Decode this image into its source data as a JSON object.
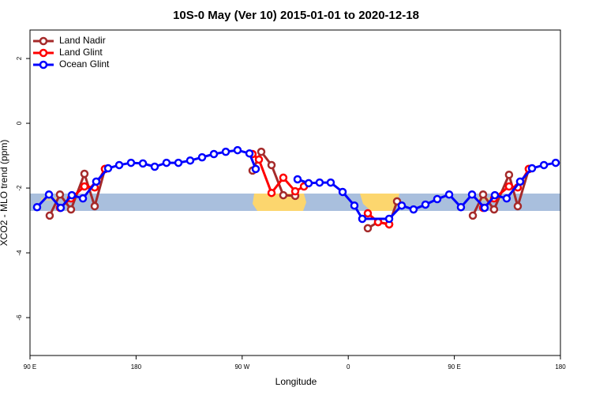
{
  "chart_data": {
    "type": "line",
    "title": "10S-0 May (Ver 10)   2015-01-01 to 2020-12-18",
    "xlabel": "Longitude",
    "ylabel": "XCO2 - MLO trend (ppm)",
    "xlim": [
      90,
      540
    ],
    "ylim": [
      -7.17,
      2.88
    ],
    "xticks": [
      {
        "value": 90,
        "label": "90 E"
      },
      180,
      {
        "value": 270,
        "label": "90 W"
      },
      {
        "value": 360,
        "label": "0"
      },
      {
        "value": 450,
        "label": "90 E"
      },
      {
        "value": 540,
        "label": "180"
      }
    ],
    "yticks": [
      2,
      0,
      -2,
      -4,
      -6
    ],
    "legend": "top-left",
    "series": [
      {
        "name": "Land Nadir",
        "color": "#a52a2a",
        "x": [
          106.7,
          115.4,
          124.8,
          136.2,
          144.9,
          153.6,
          200,
          278.8,
          286.2,
          294.9,
          304.9,
          315.0,
          350,
          376.6,
          385.3,
          394.7,
          401.4,
          440,
          465.7,
          474.4,
          483.7,
          496.4,
          503.8,
          513.2
        ],
        "values": [
          -2.85,
          -2.2,
          -2.66,
          -1.56,
          -2.56,
          -1.41,
          null,
          -1.46,
          -0.88,
          -1.29,
          -2.22,
          -2.24,
          null,
          -3.24,
          -3.05,
          -3.12,
          -2.41,
          null,
          -2.85,
          -2.2,
          -2.66,
          -1.59,
          -2.56,
          -1.41
        ]
      },
      {
        "name": "Land Glint",
        "color": "#ff0000",
        "x": [
          115.4,
          124.8,
          136.2,
          144.9,
          153.6,
          200,
          278.8,
          284.2,
          294.9,
          304.9,
          315.0,
          322.4,
          350,
          376.6,
          385.3,
          394.7,
          440,
          474.4,
          483.7,
          496.4,
          503.8,
          513.2
        ],
        "values": [
          -2.61,
          -2.32,
          -1.95,
          -1.98,
          -1.41,
          null,
          -0.95,
          -1.12,
          -2.15,
          -1.68,
          -2.1,
          -1.95,
          null,
          -2.78,
          -3.05,
          -3.12,
          null,
          -2.61,
          -2.32,
          -1.95,
          -1.98,
          -1.41
        ]
      },
      {
        "name": "Ocean Glint",
        "color": "#0000ff",
        "x": [
          96.0,
          106.1,
          116.1,
          125.5,
          134.9,
          146.2,
          156.3,
          165.7,
          175.7,
          185.8,
          195.8,
          205.8,
          215.9,
          225.9,
          236.0,
          246.0,
          256.1,
          266.1,
          276.2,
          281.5,
          300,
          317.0,
          326.4,
          335.7,
          345.1,
          355.2,
          365.2,
          371.9,
          394.7,
          405.4,
          415.4,
          425.5,
          435.5,
          445.6,
          455.6,
          465.0,
          475.7,
          484.4,
          494.4,
          505.8,
          515.9,
          526.0,
          536.0
        ],
        "values": [
          -2.59,
          -2.2,
          -2.61,
          -2.22,
          -2.32,
          -1.8,
          -1.39,
          -1.29,
          -1.22,
          -1.24,
          -1.34,
          -1.22,
          -1.22,
          -1.15,
          -1.05,
          -0.95,
          -0.88,
          -0.83,
          -0.93,
          -1.41,
          null,
          -1.73,
          -1.85,
          -1.83,
          -1.83,
          -2.12,
          -2.54,
          -2.95,
          -2.95,
          -2.54,
          -2.66,
          -2.51,
          -2.34,
          -2.2,
          -2.59,
          -2.2,
          -2.61,
          -2.22,
          -2.32,
          -1.8,
          -1.39,
          -1.29,
          -1.22
        ]
      }
    ]
  }
}
